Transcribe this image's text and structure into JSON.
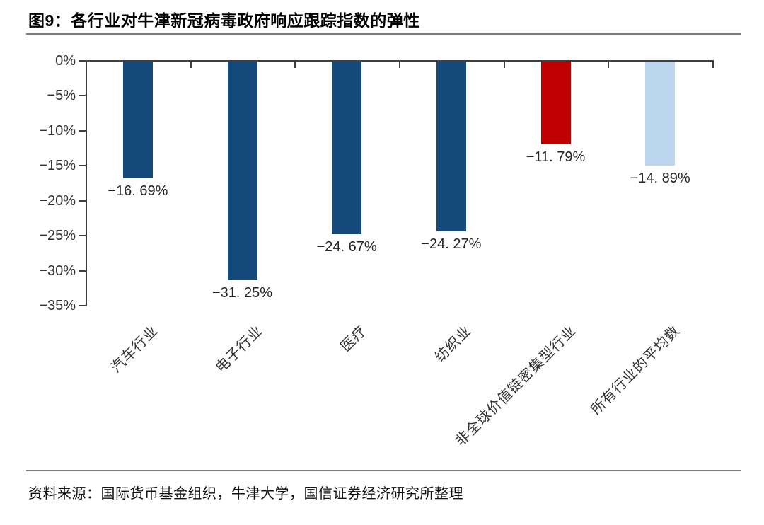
{
  "title": "图9：各行业对牛津新冠病毒政府响应跟踪指数的弹性",
  "source": "资料来源：国际货币基金组织，牛津大学，国信证券经济研究所整理",
  "colors": {
    "bar_primary": "#14497B",
    "bar_highlight": "#C00000",
    "bar_average": "#BDD7EE",
    "axis": "#3f3f3f",
    "divider": "#7f7f7f"
  },
  "chart_data": {
    "type": "bar",
    "title": "图9：各行业对牛津新冠病毒政府响应跟踪指数的弹性",
    "categories": [
      "汽车行业",
      "电子行业",
      "医疗",
      "纺织业",
      "非全球价值链密集型行业",
      "所有行业的平均数"
    ],
    "values": [
      -16.69,
      -31.25,
      -24.67,
      -24.27,
      -11.79,
      -14.89
    ],
    "data_labels": [
      "−16. 69%",
      "−31. 25%",
      "−24. 67%",
      "−24. 27%",
      "−11. 79%",
      "−14. 89%"
    ],
    "bar_colors": [
      "#14497B",
      "#14497B",
      "#14497B",
      "#14497B",
      "#C00000",
      "#BDD7EE"
    ],
    "xlabel": "",
    "ylabel": "",
    "ylim": [
      -35,
      0
    ],
    "y_ticks": [
      "0%",
      "−5%",
      "−10%",
      "−15%",
      "−20%",
      "−25%",
      "−30%",
      "−35%"
    ],
    "y_tick_values": [
      0,
      -5,
      -10,
      -15,
      -20,
      -25,
      -30,
      -35
    ],
    "grid": false,
    "legend": false,
    "orientation": "vertical",
    "baseline": "top"
  }
}
